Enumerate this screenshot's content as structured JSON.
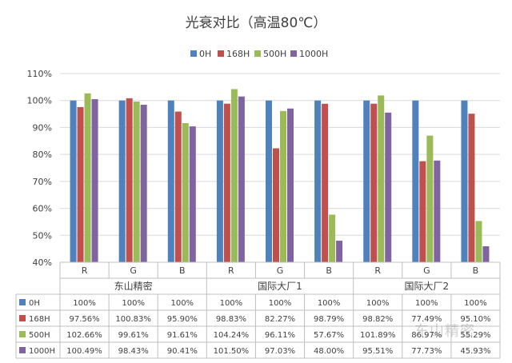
{
  "chart_data": {
    "type": "bar",
    "title": "光衰对比（高温80℃）",
    "xlabel": "",
    "ylabel": "",
    "ylim": [
      0.4,
      1.1
    ],
    "yticks": [
      "40%",
      "50%",
      "60%",
      "70%",
      "80%",
      "90%",
      "100%",
      "110%"
    ],
    "grid": true,
    "legend_position": "top",
    "groups": [
      {
        "name": "东山精密",
        "categories": [
          "R",
          "G",
          "B"
        ]
      },
      {
        "name": "国际大厂1",
        "categories": [
          "R",
          "G",
          "B"
        ]
      },
      {
        "name": "国际大厂2",
        "categories": [
          "R",
          "G",
          "B"
        ]
      }
    ],
    "categories": [
      "R",
      "G",
      "B",
      "R",
      "G",
      "B",
      "R",
      "G",
      "B"
    ],
    "series": [
      {
        "name": "0H",
        "color": "#4F81BD",
        "values": [
          1,
          1,
          1,
          1,
          1,
          1,
          1,
          1,
          1
        ],
        "labels": [
          "100%",
          "100%",
          "100%",
          "100%",
          "100%",
          "100%",
          "100%",
          "100%",
          "100%"
        ]
      },
      {
        "name": "168H",
        "color": "#C0504D",
        "values": [
          0.9756,
          1.0083,
          0.959,
          0.9883,
          0.8227,
          0.9879,
          0.9882,
          0.7749,
          0.951
        ],
        "labels": [
          "97.56%",
          "100.83%",
          "95.90%",
          "98.83%",
          "82.27%",
          "98.79%",
          "98.82%",
          "77.49%",
          "95.10%"
        ]
      },
      {
        "name": "500H",
        "color": "#9BBB59",
        "values": [
          1.0266,
          0.9961,
          0.9161,
          1.0424,
          0.9611,
          0.5767,
          1.0189,
          0.8697,
          0.5529
        ],
        "labels": [
          "102.66%",
          "99.61%",
          "91.61%",
          "104.24%",
          "96.11%",
          "57.67%",
          "101.89%",
          "86.97%",
          "55.29%"
        ]
      },
      {
        "name": "1000H",
        "color": "#8064A2",
        "values": [
          1.0049,
          0.9843,
          0.9041,
          1.015,
          0.9703,
          0.48,
          0.9551,
          0.7773,
          0.4593
        ],
        "labels": [
          "100.49%",
          "98.43%",
          "90.41%",
          "101.50%",
          "97.03%",
          "48.00%",
          "95.51%",
          "77.73%",
          "45.93%"
        ]
      }
    ]
  },
  "watermark": "东山精密"
}
